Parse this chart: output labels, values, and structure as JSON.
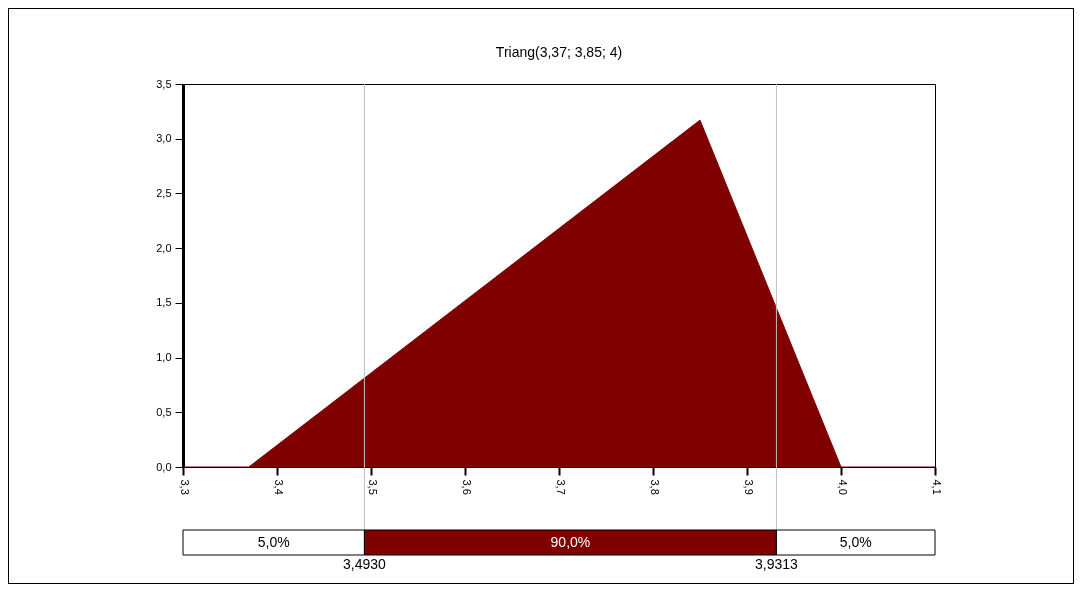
{
  "chart_data": {
    "type": "area",
    "title": "Triang(3,37; 3,85; 4)",
    "series": [
      {
        "color": "#800000",
        "x": [
          3.3,
          3.37,
          3.85,
          4.0,
          4.1
        ],
        "values": [
          0,
          0,
          3.17,
          0,
          0
        ]
      }
    ],
    "xlim": [
      3.3,
      4.1
    ],
    "xticks": [
      {
        "value": 3.3,
        "label": "3,3"
      },
      {
        "value": 3.4,
        "label": "3,4"
      },
      {
        "value": 3.5,
        "label": "3,5"
      },
      {
        "value": 3.6,
        "label": "3,6"
      },
      {
        "value": 3.7,
        "label": "3,7"
      },
      {
        "value": 3.8,
        "label": "3,8"
      },
      {
        "value": 3.9,
        "label": "3,9"
      },
      {
        "value": 4.0,
        "label": "4,0"
      },
      {
        "value": 4.1,
        "label": "4,1"
      }
    ],
    "ylim": [
      0,
      3.5
    ],
    "yticks": [
      {
        "value": 0,
        "label": "0,0"
      },
      {
        "value": 0.5,
        "label": "0,5"
      },
      {
        "value": 1,
        "label": "1,0"
      },
      {
        "value": 1.5,
        "label": "1,5"
      },
      {
        "value": 2,
        "label": "2,0"
      },
      {
        "value": 2.5,
        "label": "2,5"
      },
      {
        "value": 3,
        "label": "3,0"
      },
      {
        "value": 3.5,
        "label": "3,5"
      }
    ],
    "ref_lines": [
      {
        "axis": "x",
        "value": 3.493,
        "label": "3,4930",
        "color": "#c0c0c0"
      },
      {
        "axis": "x",
        "value": 3.9313,
        "label": "3,9313",
        "color": "#c0c0c0"
      }
    ],
    "annotations": [
      "5,0%",
      "90,0%",
      "5,0%"
    ],
    "grid": false
  }
}
